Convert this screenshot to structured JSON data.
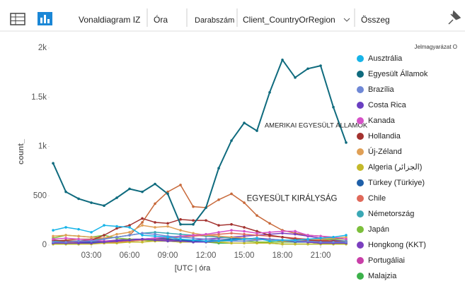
{
  "toolbar": {
    "title": "Vonaldiagram IZ",
    "x_field": "Óra",
    "y_field": "Darabszám",
    "split_field": "Client_CountryOrRegion",
    "aggregation": "Összeg"
  },
  "chart_data": {
    "type": "line",
    "legend_title": "Jelmagyarázat O",
    "xlabel": "[UTC | óra",
    "ylabel": "count_",
    "x": [
      0,
      1,
      2,
      3,
      4,
      5,
      6,
      7,
      8,
      9,
      10,
      11,
      12,
      13,
      14,
      15,
      16,
      17,
      18,
      19,
      20,
      21,
      22,
      23
    ],
    "xlim": [
      -0.17,
      23.61
    ],
    "xticks": [
      {
        "value": 3,
        "label": "03:00"
      },
      {
        "value": 6,
        "label": "06:00"
      },
      {
        "value": 9,
        "label": "09:00"
      },
      {
        "value": 12,
        "label": "12:00"
      },
      {
        "value": 15,
        "label": "15:00"
      },
      {
        "value": 18,
        "label": "18:00"
      },
      {
        "value": 21,
        "label": "21:00"
      }
    ],
    "ylim": [
      0,
      2000
    ],
    "yticks": [
      0,
      500,
      {
        "value": 1000,
        "label": "1k"
      },
      {
        "value": 1500,
        "label": "1.5k"
      },
      {
        "value": 2000,
        "label": "2k"
      }
    ],
    "annotations": [
      {
        "text": "AMERIKAI EGYESÜLT ÁLLAMOK",
        "x": 16.6,
        "y": 1210
      }
    ],
    "series": [
      {
        "name": "Ausztrália",
        "color": "#17b4e8",
        "values": [
          150,
          180,
          160,
          130,
          200,
          190,
          180,
          100,
          90,
          80,
          60,
          50,
          40,
          40,
          50,
          60,
          70,
          40,
          50,
          50,
          60,
          70,
          80,
          100
        ]
      },
      {
        "name": "Egyesült Államok",
        "color": "#0f6b7e",
        "values": [
          830,
          540,
          470,
          430,
          400,
          480,
          570,
          540,
          620,
          520,
          210,
          210,
          380,
          780,
          1060,
          1240,
          1160,
          1550,
          1880,
          1700,
          1790,
          1820,
          1400,
          1040
        ]
      },
      {
        "name": "Brazília",
        "color": "#6f88d6",
        "values": [
          30,
          30,
          40,
          40,
          60,
          80,
          100,
          120,
          110,
          90,
          80,
          70,
          60,
          50,
          40,
          40,
          50,
          60,
          50,
          40,
          40,
          30,
          30,
          30
        ]
      },
      {
        "name": "Costa Rica",
        "color": "#6a3fc1",
        "values": [
          20,
          20,
          20,
          20,
          30,
          40,
          50,
          60,
          50,
          40,
          40,
          30,
          30,
          40,
          50,
          60,
          70,
          60,
          50,
          40,
          30,
          20,
          20,
          20
        ]
      },
      {
        "name": "Kanada",
        "color": "#d651c7",
        "values": [
          60,
          70,
          60,
          50,
          40,
          40,
          50,
          60,
          70,
          80,
          90,
          100,
          110,
          130,
          150,
          140,
          120,
          130,
          140,
          140,
          100,
          90,
          80,
          60
        ]
      },
      {
        "name": "Hollandia",
        "color": "#a3322f",
        "values": [
          50,
          40,
          40,
          50,
          100,
          170,
          200,
          270,
          230,
          220,
          260,
          250,
          250,
          200,
          210,
          180,
          140,
          100,
          80,
          60,
          50,
          40,
          40,
          30
        ]
      },
      {
        "name": "Új-Zéland",
        "color": "#e0a056",
        "values": [
          90,
          100,
          90,
          80,
          70,
          110,
          130,
          200,
          180,
          190,
          150,
          120,
          100,
          90,
          80,
          70,
          60,
          50,
          40,
          40,
          50,
          60,
          70,
          80
        ]
      },
      {
        "name": "Algeria (الجزائر)",
        "color": "#c4b92a",
        "values": [
          10,
          10,
          10,
          10,
          20,
          20,
          30,
          30,
          40,
          40,
          30,
          30,
          30,
          30,
          20,
          20,
          20,
          20,
          10,
          10,
          10,
          10,
          10,
          10
        ]
      },
      {
        "name": "Türkey (Türkiye)",
        "color": "#1e5fa8",
        "values": [
          20,
          20,
          20,
          30,
          30,
          40,
          50,
          60,
          70,
          60,
          50,
          40,
          40,
          50,
          60,
          70,
          60,
          50,
          40,
          30,
          30,
          20,
          20,
          20
        ]
      },
      {
        "name": "Chile",
        "color": "#e0695a",
        "values": [
          30,
          30,
          20,
          20,
          20,
          30,
          40,
          50,
          60,
          70,
          80,
          90,
          100,
          110,
          120,
          110,
          100,
          90,
          80,
          70,
          60,
          50,
          40,
          30
        ]
      },
      {
        "name": "Németország",
        "color": "#3aa8b5",
        "values": [
          40,
          40,
          40,
          50,
          60,
          80,
          100,
          120,
          130,
          120,
          110,
          100,
          90,
          80,
          70,
          60,
          60,
          50,
          50,
          40,
          40,
          40,
          40,
          40
        ]
      },
      {
        "name": "Japán",
        "color": "#7cbf3c",
        "values": [
          70,
          100,
          90,
          80,
          100,
          70,
          60,
          50,
          40,
          40,
          30,
          30,
          30,
          40,
          40,
          40,
          30,
          30,
          30,
          30,
          40,
          50,
          60,
          60
        ]
      },
      {
        "name": "Hongkong (KKT)",
        "color": "#7b3fbf",
        "values": [
          20,
          20,
          30,
          30,
          40,
          50,
          60,
          60,
          70,
          60,
          50,
          50,
          60,
          70,
          80,
          90,
          100,
          110,
          120,
          110,
          90,
          70,
          50,
          40
        ]
      },
      {
        "name": "Portugáliai",
        "color": "#c93fa8",
        "values": [
          20,
          20,
          20,
          30,
          30,
          40,
          50,
          60,
          60,
          50,
          50,
          40,
          40,
          50,
          50,
          60,
          60,
          50,
          40,
          30,
          30,
          20,
          20,
          20
        ]
      },
      {
        "name": "Malajzia",
        "color": "#3bb14a",
        "values": [
          10,
          10,
          10,
          20,
          20,
          30,
          40,
          50,
          50,
          40,
          40,
          30,
          30,
          20,
          20,
          20,
          20,
          20,
          10,
          10,
          10,
          10,
          10,
          10
        ]
      },
      {
        "name": "EGYESÜLT KIRÁLYSÁG",
        "color": "#c8693a",
        "show_in_legend": false,
        "label_x": 15.2,
        "label_y": 470,
        "values": [
          40,
          50,
          60,
          60,
          70,
          80,
          100,
          230,
          420,
          540,
          610,
          390,
          380,
          460,
          520,
          430,
          300,
          220,
          150,
          120,
          100,
          90,
          70,
          60
        ]
      }
    ]
  }
}
